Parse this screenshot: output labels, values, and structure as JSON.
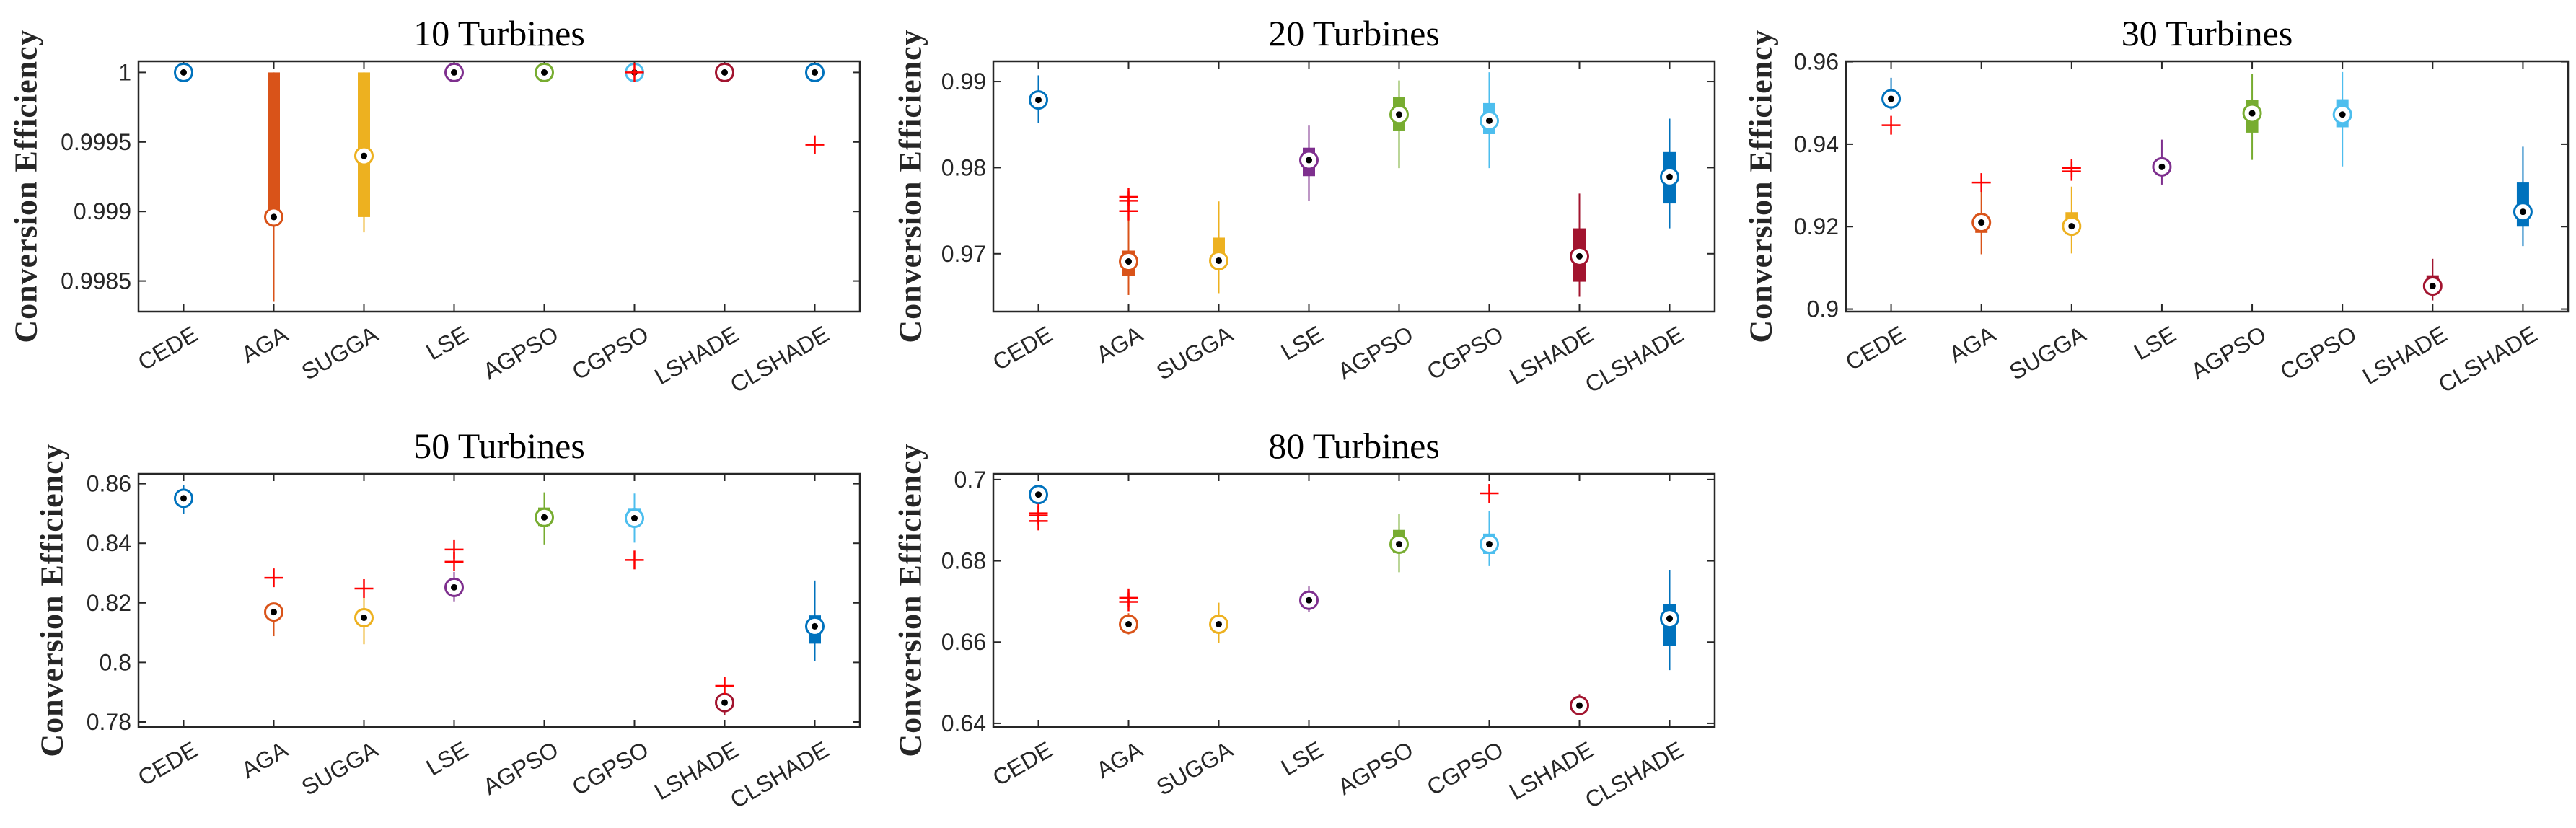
{
  "chart_data": [
    {
      "type": "box",
      "title": "10 Turbines",
      "ylabel": "Conversion Efficiency",
      "categories": [
        "CEDE",
        "AGA",
        "SUGGA",
        "LSE",
        "AGPSO",
        "CGPSO",
        "LSHADE",
        "CLSHADE"
      ],
      "ylim": [
        0.99828,
        1.00008
      ],
      "yticks": [
        0.9985,
        0.999,
        0.9995,
        1
      ],
      "ytick_labels": [
        "0.9985",
        "0.999",
        "0.9995",
        "1"
      ],
      "series": [
        {
          "name": "CEDE",
          "median": 1,
          "q1": 1,
          "q3": 1,
          "whisker_low": 1,
          "whisker_high": 1,
          "outliers": []
        },
        {
          "name": "AGA",
          "median": 0.99896,
          "q1": 0.99896,
          "q3": 1,
          "whisker_low": 0.99835,
          "whisker_high": 1,
          "outliers": []
        },
        {
          "name": "SUGGA",
          "median": 0.9994,
          "q1": 0.99896,
          "q3": 1,
          "whisker_low": 0.99885,
          "whisker_high": 1,
          "outliers": []
        },
        {
          "name": "LSE",
          "median": 1,
          "q1": 1,
          "q3": 1,
          "whisker_low": 1,
          "whisker_high": 1,
          "outliers": []
        },
        {
          "name": "AGPSO",
          "median": 1,
          "q1": 1,
          "q3": 1,
          "whisker_low": 1,
          "whisker_high": 1,
          "outliers": []
        },
        {
          "name": "CGPSO",
          "median": 1,
          "q1": 1,
          "q3": 1,
          "whisker_low": 1,
          "whisker_high": 1,
          "outliers": [
            1
          ]
        },
        {
          "name": "LSHADE",
          "median": 1,
          "q1": 1,
          "q3": 1,
          "whisker_low": 1,
          "whisker_high": 1,
          "outliers": []
        },
        {
          "name": "CLSHADE",
          "median": 1,
          "q1": 1,
          "q3": 1,
          "whisker_low": 1,
          "whisker_high": 1,
          "outliers": [
            0.99948
          ]
        }
      ]
    },
    {
      "type": "box",
      "title": "20 Turbines",
      "ylabel": "Conversion Efficiency",
      "categories": [
        "CEDE",
        "AGA",
        "SUGGA",
        "LSE",
        "AGPSO",
        "CGPSO",
        "LSHADE",
        "CLSHADE"
      ],
      "ylim": [
        0.96328,
        0.99235
      ],
      "yticks": [
        0.97,
        0.98,
        0.99
      ],
      "ytick_labels": [
        "0.97",
        "0.98",
        "0.99"
      ],
      "series": [
        {
          "name": "CEDE",
          "median": 0.98786,
          "q1": 0.9875,
          "q3": 0.9882,
          "whisker_low": 0.98521,
          "whisker_high": 0.99072,
          "outliers": []
        },
        {
          "name": "AGA",
          "median": 0.9691,
          "q1": 0.96744,
          "q3": 0.97036,
          "whisker_low": 0.96521,
          "whisker_high": 0.97395,
          "outliers": [
            0.9766,
            0.97615,
            0.97495
          ]
        },
        {
          "name": "SUGGA",
          "median": 0.96919,
          "q1": 0.9688,
          "q3": 0.97187,
          "whisker_low": 0.96542,
          "whisker_high": 0.97608,
          "outliers": []
        },
        {
          "name": "LSE",
          "median": 0.98087,
          "q1": 0.97901,
          "q3": 0.98232,
          "whisker_low": 0.97611,
          "whisker_high": 0.98488,
          "outliers": []
        },
        {
          "name": "AGPSO",
          "median": 0.98617,
          "q1": 0.98431,
          "q3": 0.98816,
          "whisker_low": 0.97994,
          "whisker_high": 0.99012,
          "outliers": []
        },
        {
          "name": "CGPSO",
          "median": 0.98545,
          "q1": 0.98389,
          "q3": 0.9875,
          "whisker_low": 0.97994,
          "whisker_high": 0.99108,
          "outliers": []
        },
        {
          "name": "LSHADE",
          "median": 0.9697,
          "q1": 0.96675,
          "q3": 0.97295,
          "whisker_low": 0.965,
          "whisker_high": 0.97699,
          "outliers": []
        },
        {
          "name": "CLSHADE",
          "median": 0.97892,
          "q1": 0.97584,
          "q3": 0.98181,
          "whisker_low": 0.97295,
          "whisker_high": 0.98569,
          "outliers": []
        }
      ]
    },
    {
      "type": "box",
      "title": "30 Turbines",
      "ylabel": "Conversion Efficiency",
      "categories": [
        "CEDE",
        "AGA",
        "SUGGA",
        "LSE",
        "AGPSO",
        "CGPSO",
        "LSHADE",
        "CLSHADE"
      ],
      "ylim": [
        0.8994,
        0.9601
      ],
      "yticks": [
        0.9,
        0.92,
        0.94,
        0.96
      ],
      "ytick_labels": [
        "0.9",
        "0.92",
        "0.94",
        "0.96"
      ],
      "series": [
        {
          "name": "CEDE",
          "median": 0.951,
          "q1": 0.9502,
          "q3": 0.9518,
          "whisker_low": 0.9484,
          "whisker_high": 0.9561,
          "outliers": [
            0.9446
          ]
        },
        {
          "name": "AGA",
          "median": 0.921,
          "q1": 0.9185,
          "q3": 0.923,
          "whisker_low": 0.9133,
          "whisker_high": 0.9288,
          "outliers": [
            0.9307
          ]
        },
        {
          "name": "SUGGA",
          "median": 0.9201,
          "q1": 0.9181,
          "q3": 0.9235,
          "whisker_low": 0.9135,
          "whisker_high": 0.9297,
          "outliers": [
            0.9342,
            0.9334
          ]
        },
        {
          "name": "LSE",
          "median": 0.9345,
          "q1": 0.9335,
          "q3": 0.9355,
          "whisker_low": 0.9302,
          "whisker_high": 0.9411,
          "outliers": []
        },
        {
          "name": "AGPSO",
          "median": 0.9475,
          "q1": 0.9428,
          "q3": 0.9507,
          "whisker_low": 0.9362,
          "whisker_high": 0.957,
          "outliers": []
        },
        {
          "name": "CGPSO",
          "median": 0.9472,
          "q1": 0.9441,
          "q3": 0.9509,
          "whisker_low": 0.9346,
          "whisker_high": 0.9575,
          "outliers": []
        },
        {
          "name": "LSHADE",
          "median": 0.9056,
          "q1": 0.9045,
          "q3": 0.9082,
          "whisker_low": 0.9021,
          "whisker_high": 0.9122,
          "outliers": []
        },
        {
          "name": "CLSHADE",
          "median": 0.9236,
          "q1": 0.92,
          "q3": 0.9307,
          "whisker_low": 0.9153,
          "whisker_high": 0.9394,
          "outliers": []
        }
      ]
    },
    {
      "type": "box",
      "title": "50 Turbines",
      "ylabel": "Conversion Efficiency",
      "categories": [
        "CEDE",
        "AGA",
        "SUGGA",
        "LSE",
        "AGPSO",
        "CGPSO",
        "LSHADE",
        "CLSHADE"
      ],
      "ylim": [
        0.7783,
        0.8633
      ],
      "yticks": [
        0.78,
        0.8,
        0.82,
        0.84,
        0.86
      ],
      "ytick_labels": [
        "0.78",
        "0.8",
        "0.82",
        "0.84",
        "0.86"
      ],
      "series": [
        {
          "name": "CEDE",
          "median": 0.8551,
          "q1": 0.8545,
          "q3": 0.8557,
          "whisker_low": 0.8499,
          "whisker_high": 0.8595,
          "outliers": []
        },
        {
          "name": "AGA",
          "median": 0.8169,
          "q1": 0.8163,
          "q3": 0.8175,
          "whisker_low": 0.8088,
          "whisker_high": 0.8197,
          "outliers": [
            0.8284
          ]
        },
        {
          "name": "SUGGA",
          "median": 0.815,
          "q1": 0.8144,
          "q3": 0.8156,
          "whisker_low": 0.8061,
          "whisker_high": 0.8218,
          "outliers": [
            0.8248
          ]
        },
        {
          "name": "LSE",
          "median": 0.8252,
          "q1": 0.8246,
          "q3": 0.8258,
          "whisker_low": 0.8205,
          "whisker_high": 0.8304,
          "outliers": [
            0.8379,
            0.8338
          ]
        },
        {
          "name": "AGPSO",
          "median": 0.8487,
          "q1": 0.8458,
          "q3": 0.852,
          "whisker_low": 0.8396,
          "whisker_high": 0.8571,
          "outliers": []
        },
        {
          "name": "CGPSO",
          "median": 0.8484,
          "q1": 0.8458,
          "q3": 0.8516,
          "whisker_low": 0.8402,
          "whisker_high": 0.8567,
          "outliers": [
            0.8344
          ]
        },
        {
          "name": "LSHADE",
          "median": 0.7865,
          "q1": 0.786,
          "q3": 0.787,
          "whisker_low": 0.7823,
          "whisker_high": 0.7891,
          "outliers": [
            0.7921
          ]
        },
        {
          "name": "CLSHADE",
          "median": 0.8121,
          "q1": 0.8063,
          "q3": 0.8158,
          "whisker_low": 0.8005,
          "whisker_high": 0.8275,
          "outliers": []
        }
      ]
    },
    {
      "type": "box",
      "title": "80 Turbines",
      "ylabel": "Conversion Efficiency",
      "categories": [
        "CEDE",
        "AGA",
        "SUGGA",
        "LSE",
        "AGPSO",
        "CGPSO",
        "LSHADE",
        "CLSHADE"
      ],
      "ylim": [
        0.6391,
        0.7014
      ],
      "yticks": [
        0.64,
        0.66,
        0.68,
        0.7
      ],
      "ytick_labels": [
        "0.64",
        "0.66",
        "0.68",
        "0.7"
      ],
      "series": [
        {
          "name": "CEDE",
          "median": 0.6963,
          "q1": 0.6958,
          "q3": 0.6968,
          "whisker_low": 0.6939,
          "whisker_high": 0.6986,
          "outliers": [
            0.6917,
            0.6912,
            0.6898
          ]
        },
        {
          "name": "AGA",
          "median": 0.6644,
          "q1": 0.664,
          "q3": 0.6648,
          "whisker_low": 0.6619,
          "whisker_high": 0.6671,
          "outliers": [
            0.6709,
            0.6699
          ]
        },
        {
          "name": "SUGGA",
          "median": 0.6644,
          "q1": 0.664,
          "q3": 0.6648,
          "whisker_low": 0.6598,
          "whisker_high": 0.6697,
          "outliers": []
        },
        {
          "name": "LSE",
          "median": 0.6703,
          "q1": 0.6699,
          "q3": 0.6707,
          "whisker_low": 0.6675,
          "whisker_high": 0.6737,
          "outliers": []
        },
        {
          "name": "AGPSO",
          "median": 0.6841,
          "q1": 0.6819,
          "q3": 0.6876,
          "whisker_low": 0.6772,
          "whisker_high": 0.6916,
          "outliers": []
        },
        {
          "name": "CGPSO",
          "median": 0.6841,
          "q1": 0.6817,
          "q3": 0.6867,
          "whisker_low": 0.6787,
          "whisker_high": 0.6922,
          "outliers": [
            0.6966
          ]
        },
        {
          "name": "LSHADE",
          "median": 0.6444,
          "q1": 0.644,
          "q3": 0.6448,
          "whisker_low": 0.642,
          "whisker_high": 0.6472,
          "outliers": []
        },
        {
          "name": "CLSHADE",
          "median": 0.6658,
          "q1": 0.6591,
          "q3": 0.6693,
          "whisker_low": 0.6531,
          "whisker_high": 0.6778,
          "outliers": []
        }
      ]
    }
  ],
  "colors": {
    "CEDE": "#0072BD",
    "AGA": "#D95319",
    "SUGGA": "#EDB120",
    "LSE": "#7E2F8E",
    "AGPSO": "#77AC30",
    "CGPSO": "#4DBEEE",
    "LSHADE": "#A2142F",
    "CLSHADE": "#0072BD",
    "outlier": "#FF0000",
    "axes": "#262626"
  }
}
